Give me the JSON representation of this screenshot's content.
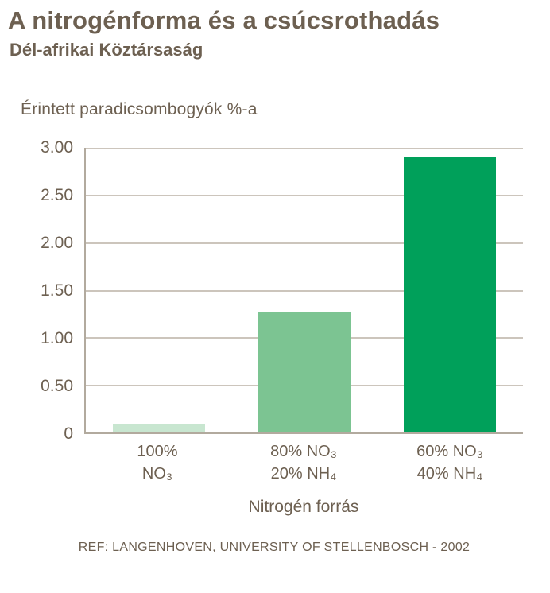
{
  "header": {
    "title": "A nitrogénforma és a csúcsrothadás",
    "subtitle": "Dél-afrikai Köztársaság"
  },
  "chart_data": {
    "type": "bar",
    "title": "Érintett paradicsombogyók %-a",
    "ylabel": "Érintett paradicsombogyók %-a",
    "xlabel": "Nitrogén forrás",
    "ylim": [
      0,
      3.0
    ],
    "yticks": [
      "3.00",
      "2.50",
      "2.00",
      "1.50",
      "1.00",
      "0.50",
      "0"
    ],
    "categories": [
      {
        "line1": "100%",
        "line2": "NO₃"
      },
      {
        "line1": "80% NO₃",
        "line2": "20% NH₄"
      },
      {
        "line1": "60% NO₃",
        "line2": "40% NH₄"
      }
    ],
    "values": [
      0.08,
      1.26,
      2.9
    ],
    "bar_colors": [
      "#c8e6d0",
      "#7cc492",
      "#00a05a"
    ],
    "grid": true,
    "legend": false
  },
  "footer": {
    "reference": "REF: LANGENHOVEN, UNIVERSITY OF STELLENBOSCH - 2002"
  },
  "colors": {
    "text": "#6d6051",
    "axis": "#b2aa9e",
    "gridline": "#ccc5bc"
  }
}
